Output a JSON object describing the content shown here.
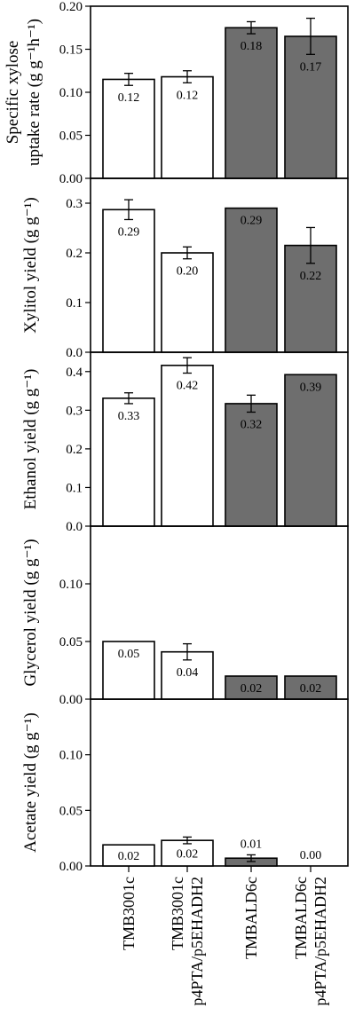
{
  "chart_data": [
    {
      "type": "bar",
      "ylabel_lines": [
        "Specific xylose",
        "uptake rate (g g⁻¹h⁻¹)"
      ],
      "ylim": [
        0,
        0.2
      ],
      "yticks": [
        0.0,
        0.05,
        0.1,
        0.15,
        0.2
      ],
      "ytick_labels": [
        "0.00",
        "0.05",
        "0.10",
        "0.15",
        "0.20"
      ],
      "values": [
        0.115,
        0.118,
        0.175,
        0.165
      ],
      "errors": [
        0.007,
        0.007,
        0.007,
        0.021
      ],
      "data_labels": [
        "0.12",
        "0.12",
        "0.18",
        "0.17"
      ]
    },
    {
      "type": "bar",
      "ylabel_lines": [
        "Xylitol yield (g g⁻¹)"
      ],
      "ylim": [
        0,
        0.35
      ],
      "yticks": [
        0.0,
        0.1,
        0.2,
        0.3
      ],
      "ytick_labels": [
        "0.0",
        "0.1",
        "0.2",
        "0.3"
      ],
      "values": [
        0.287,
        0.2,
        0.29,
        0.215
      ],
      "errors": [
        0.02,
        0.012,
        0.0,
        0.036
      ],
      "data_labels": [
        "0.29",
        "0.20",
        "0.29",
        "0.22"
      ]
    },
    {
      "type": "bar",
      "ylabel_lines": [
        "Ethanol yield (g g⁻¹)"
      ],
      "ylim": [
        0,
        0.45
      ],
      "yticks": [
        0.0,
        0.1,
        0.2,
        0.3,
        0.4
      ],
      "ytick_labels": [
        "0.0",
        "0.1",
        "0.2",
        "0.3",
        "0.4"
      ],
      "values": [
        0.331,
        0.416,
        0.317,
        0.392
      ],
      "errors": [
        0.014,
        0.02,
        0.022,
        0.0
      ],
      "data_labels": [
        "0.33",
        "0.42",
        "0.32",
        "0.39"
      ]
    },
    {
      "type": "bar",
      "ylabel_lines": [
        "Glycerol yield (g g⁻¹)"
      ],
      "ylim": [
        0,
        0.15
      ],
      "yticks": [
        0.0,
        0.05,
        0.1
      ],
      "ytick_labels": [
        "0.00",
        "0.05",
        "0.10"
      ],
      "values": [
        0.05,
        0.041,
        0.02,
        0.02
      ],
      "errors": [
        0.0,
        0.007,
        0.0,
        0.0
      ],
      "data_labels": [
        "0.05",
        "0.04",
        "0.02",
        "0.02"
      ]
    },
    {
      "type": "bar",
      "ylabel_lines": [
        "Acetate yield (g g⁻¹)"
      ],
      "ylim": [
        0,
        0.15
      ],
      "yticks": [
        0.0,
        0.05,
        0.1
      ],
      "ytick_labels": [
        "0.00",
        "0.05",
        "0.10"
      ],
      "values": [
        0.019,
        0.023,
        0.007,
        0.0
      ],
      "errors": [
        0.0,
        0.003,
        0.003,
        0.0
      ],
      "data_labels": [
        "0.02",
        "0.02",
        "0.01",
        "0.00"
      ]
    }
  ],
  "categories": [
    [
      "TMB3001c"
    ],
    [
      "TMB3001c",
      "p4PTA/p5EHADH2"
    ],
    [
      "TMBALD6c"
    ],
    [
      "TMBALD6c",
      "p4PTA/p5EHADH2"
    ]
  ],
  "bar_fills": [
    "#ffffff",
    "#ffffff",
    "#6e6e6e",
    "#6e6e6e"
  ],
  "grid": false
}
